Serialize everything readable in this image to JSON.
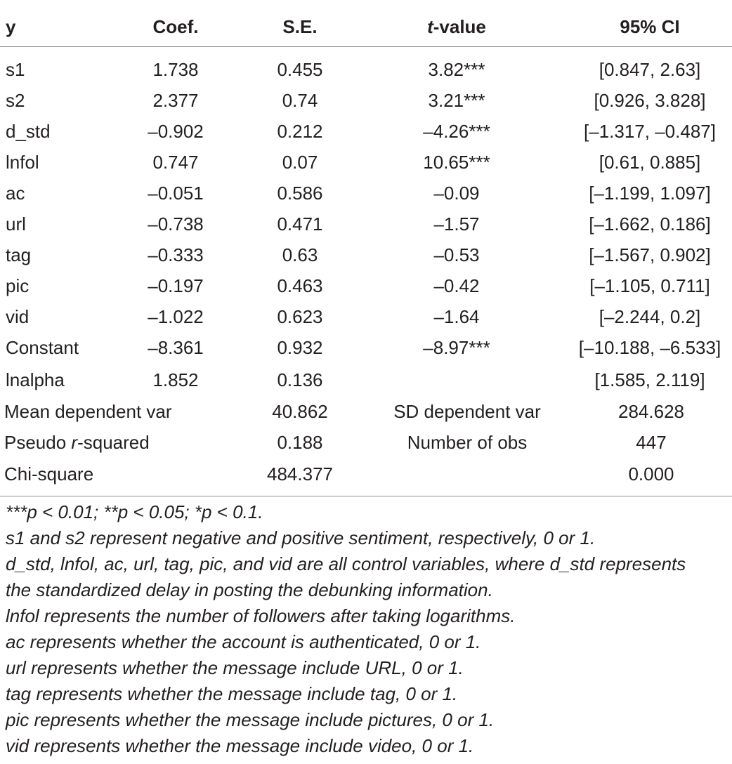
{
  "header": {
    "y": "y",
    "coef": "Coef.",
    "se": "S.E.",
    "t_italic": "t",
    "t_rest": "-value",
    "ci": "95% CI"
  },
  "rows": [
    {
      "y": "s1",
      "coef": "1.738",
      "se": "0.455",
      "t": "3.82***",
      "ci": "[0.847, 2.63]"
    },
    {
      "y": "s2",
      "coef": "2.377",
      "se": "0.74",
      "t": "3.21***",
      "ci": "[0.926, 3.828]"
    },
    {
      "y": "d_std",
      "coef": "–0.902",
      "se": "0.212",
      "t": "–4.26***",
      "ci": "[–1.317, –0.487]"
    },
    {
      "y": "lnfol",
      "coef": "0.747",
      "se": "0.07",
      "t": "10.65***",
      "ci": "[0.61, 0.885]"
    },
    {
      "y": "ac",
      "coef": "–0.051",
      "se": "0.586",
      "t": "–0.09",
      "ci": "[–1.199, 1.097]"
    },
    {
      "y": "url",
      "coef": "–0.738",
      "se": "0.471",
      "t": "–1.57",
      "ci": "[–1.662, 0.186]"
    },
    {
      "y": "tag",
      "coef": "–0.333",
      "se": "0.63",
      "t": "–0.53",
      "ci": "[–1.567, 0.902]"
    },
    {
      "y": "pic",
      "coef": "–0.197",
      "se": "0.463",
      "t": "–0.42",
      "ci": "[–1.105, 0.711]"
    },
    {
      "y": "vid",
      "coef": "–1.022",
      "se": "0.623",
      "t": "–1.64",
      "ci": "[–2.244, 0.2]"
    },
    {
      "y": "Constant",
      "coef": "–8.361",
      "se": "0.932",
      "t": "–8.97***",
      "ci": "[–10.188, –6.533]"
    },
    {
      "y": "lnalpha",
      "coef": "1.852",
      "se": "0.136",
      "t": "",
      "ci": "[1.585, 2.119]"
    }
  ],
  "stats": {
    "mean_dep_label": "Mean dependent var",
    "mean_dep_value": "40.862",
    "sd_dep_label": "SD dependent var",
    "sd_dep_value": "284.628",
    "pseudo_r2_label_pre": "Pseudo ",
    "pseudo_r2_label_r": "r",
    "pseudo_r2_label_post": "-squared",
    "pseudo_r2_value": "0.188",
    "nobs_label": "Number of obs",
    "nobs_value": "447",
    "chi_label": "Chi-square",
    "chi_value": "484.377",
    "chi_p": "0.000"
  },
  "notes": [
    "***p < 0.01; **p < 0.05; *p < 0.1.",
    "s1 and s2 represent negative and positive sentiment, respectively, 0 or 1.",
    "d_std, lnfol, ac, url, tag, pic, and vid are all control variables, where d_std represents",
    "the standardized delay in posting the debunking information.",
    "lnfol represents the number of followers after taking logarithms.",
    "ac represents whether the account is authenticated, 0 or 1.",
    "url represents whether the message include URL, 0 or 1.",
    "tag represents whether the message include tag, 0 or 1.",
    "pic represents whether the message include pictures, 0 or 1.",
    "vid represents whether the message include video, 0 or 1."
  ]
}
